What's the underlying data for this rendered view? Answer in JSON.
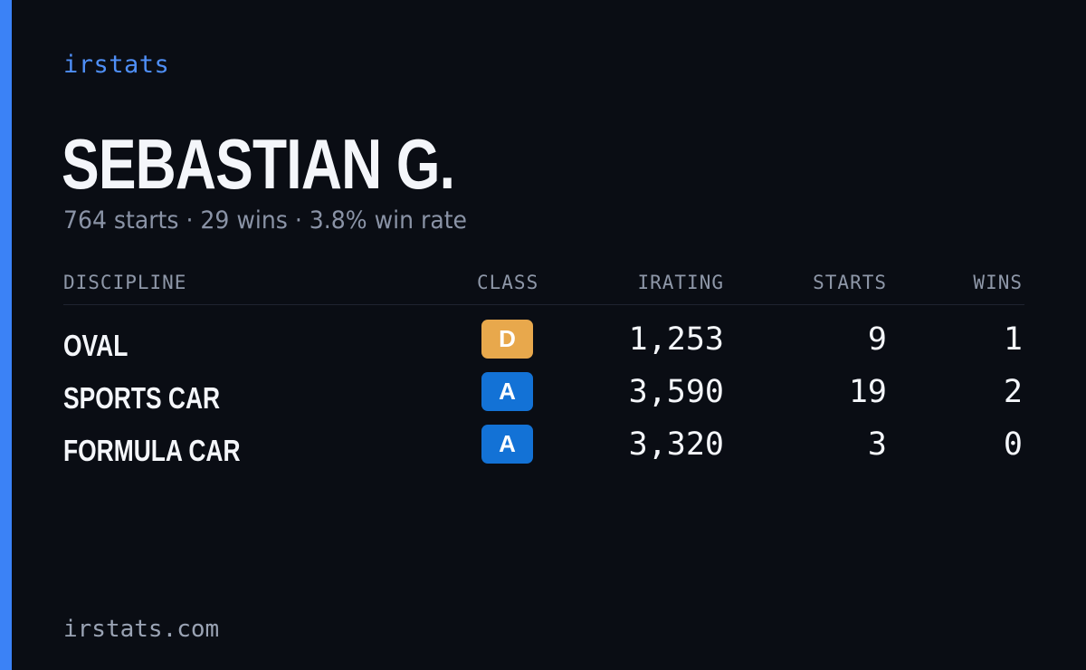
{
  "brand": "irstats",
  "player": {
    "name": "SEBASTIAN G.",
    "summary": "764 starts · 29 wins · 3.8% win rate"
  },
  "table": {
    "headers": {
      "discipline": "DISCIPLINE",
      "class": "CLASS",
      "irating": "IRATING",
      "starts": "STARTS",
      "wins": "WINS"
    },
    "rows": [
      {
        "discipline": "OVAL",
        "class": "D",
        "class_color": "#e8a84c",
        "irating": "1,253",
        "starts": "9",
        "wins": "1"
      },
      {
        "discipline": "SPORTS CAR",
        "class": "A",
        "class_color": "#1372d6",
        "irating": "3,590",
        "starts": "19",
        "wins": "2"
      },
      {
        "discipline": "FORMULA CAR",
        "class": "A",
        "class_color": "#1372d6",
        "irating": "3,320",
        "starts": "3",
        "wins": "0"
      }
    ]
  },
  "footer": "irstats.com",
  "colors": {
    "background": "#0a0d14",
    "accent": "#3b82f6",
    "brand": "#4f8ff7"
  }
}
